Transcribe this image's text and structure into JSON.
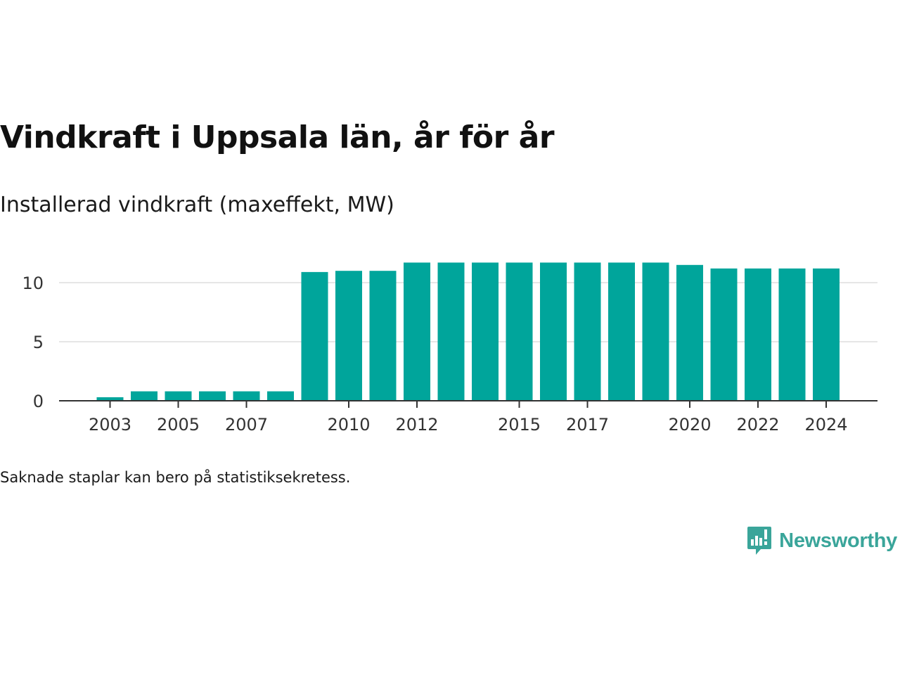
{
  "header": {
    "title": "Vindkraft i Uppsala län, år för år",
    "subtitle": "Installerad vindkraft (maxeffekt, MW)"
  },
  "footnote": "Saknade staplar kan bero på statistiksekretess.",
  "brand": {
    "name": "Newsworthy",
    "icon": "newsworthy-logo-icon",
    "color": "#3aa59a"
  },
  "chart_data": {
    "type": "bar",
    "title": "Vindkraft i Uppsala län, år för år",
    "subtitle": "Installerad vindkraft (maxeffekt, MW)",
    "xlabel": "",
    "ylabel": "",
    "categories": [
      "2002",
      "2003",
      "2004",
      "2005",
      "2006",
      "2007",
      "2008",
      "2009",
      "2010",
      "2011",
      "2012",
      "2013",
      "2014",
      "2015",
      "2016",
      "2017",
      "2018",
      "2019",
      "2020",
      "2021",
      "2022",
      "2023",
      "2024"
    ],
    "x_tick_labels": [
      "2003",
      "2005",
      "2007",
      "2010",
      "2012",
      "2015",
      "2017",
      "2020",
      "2022",
      "2024"
    ],
    "values": [
      null,
      0.3,
      0.8,
      0.8,
      0.8,
      0.8,
      0.8,
      10.9,
      11.0,
      11.0,
      11.7,
      11.7,
      11.7,
      11.7,
      11.7,
      11.7,
      11.7,
      11.7,
      11.5,
      11.2,
      11.2,
      11.2,
      11.2
    ],
    "y_ticks": [
      0,
      5,
      10
    ],
    "ylim": [
      0,
      12.4
    ],
    "grid": true,
    "bar_color": "#00a59b",
    "grid_color": "#dddddd",
    "axis_color": "#333333"
  }
}
